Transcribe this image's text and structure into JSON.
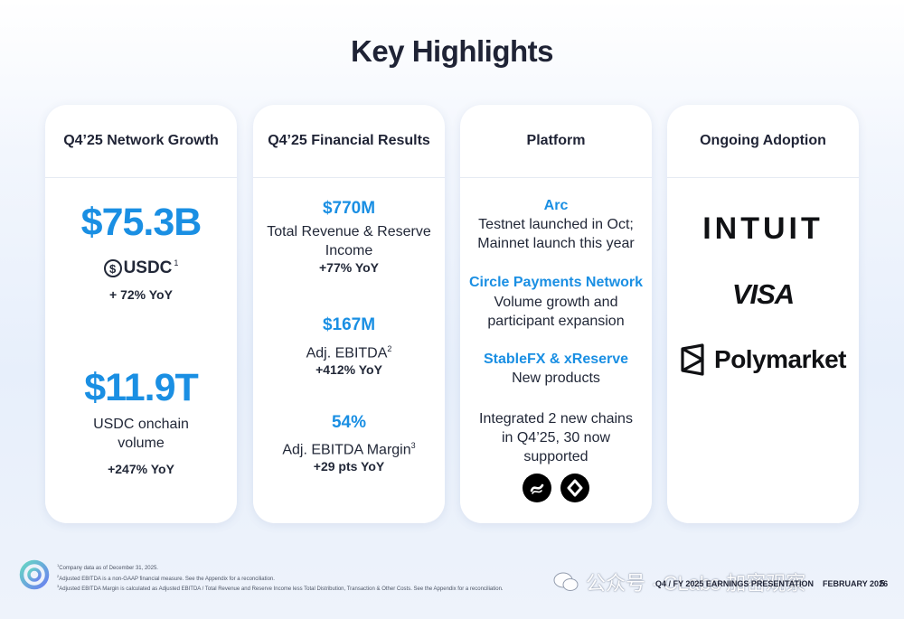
{
  "title": "Key Highlights",
  "cards": [
    {
      "header": "Q4’25 Network Growth",
      "stat1_value": "$75.3B",
      "stat1_brand": "USDC",
      "stat1_footnote": "1",
      "stat1_yoy": "+ 72% YoY",
      "stat2_value": "$11.9T",
      "stat2_label_line1": "USDC onchain",
      "stat2_label_line2": "volume",
      "stat2_yoy": "+247% YoY"
    },
    {
      "header": "Q4’25 Financial Results",
      "m1_value": "$770M",
      "m1_label_line1": "Total Revenue & Reserve",
      "m1_label_line2": "Income",
      "m1_yoy": "+77% YoY",
      "m2_value": "$167M",
      "m2_label": "Adj. EBITDA",
      "m2_footnote": "2",
      "m2_yoy": "+412% YoY",
      "m3_value": "54%",
      "m3_label": "Adj. EBITDA Margin",
      "m3_footnote": "3",
      "m3_yoy": "+29 pts YoY"
    },
    {
      "header": "Platform",
      "p1_title": "Arc",
      "p1_line1": "Testnet launched in Oct;",
      "p1_line2": "Mainnet launch this year",
      "p2_title": "Circle Payments Network",
      "p2_line1": "Volume growth and",
      "p2_line2": "participant expansion",
      "p3_title": "StableFX & xReserve",
      "p3_line1": "New products",
      "p4_line1": "Integrated 2 new chains",
      "p4_line2": "in Q4’25, 30 now",
      "p4_line3": "supported"
    },
    {
      "header": "Ongoing Adoption",
      "logo1": "INTUIT",
      "logo2": "VISA",
      "logo3": "Polymarket"
    }
  ],
  "footnotes": [
    {
      "num": "1",
      "text": "Company data as of December 31, 2025."
    },
    {
      "num": "2",
      "text": "Adjusted EBITDA is a non-GAAP financial measure. See the Appendix for a reconciliation."
    },
    {
      "num": "3",
      "text": "Adjusted EBITDA Margin is calculated as Adjusted EBITDA / Total Revenue and Reserve Income less Total Distribution, Transaction & Other Costs. See the Appendix for a reconciliation."
    }
  ],
  "footer": {
    "presentation": "Q4 / FY 2025 EARNINGS PRESENTATION",
    "date": "FEBRUARY 2026",
    "page": "5"
  },
  "watermark": "公众号 · CLabs 加密观察",
  "colors": {
    "accent": "#1a8fe3",
    "text": "#1f2335"
  }
}
